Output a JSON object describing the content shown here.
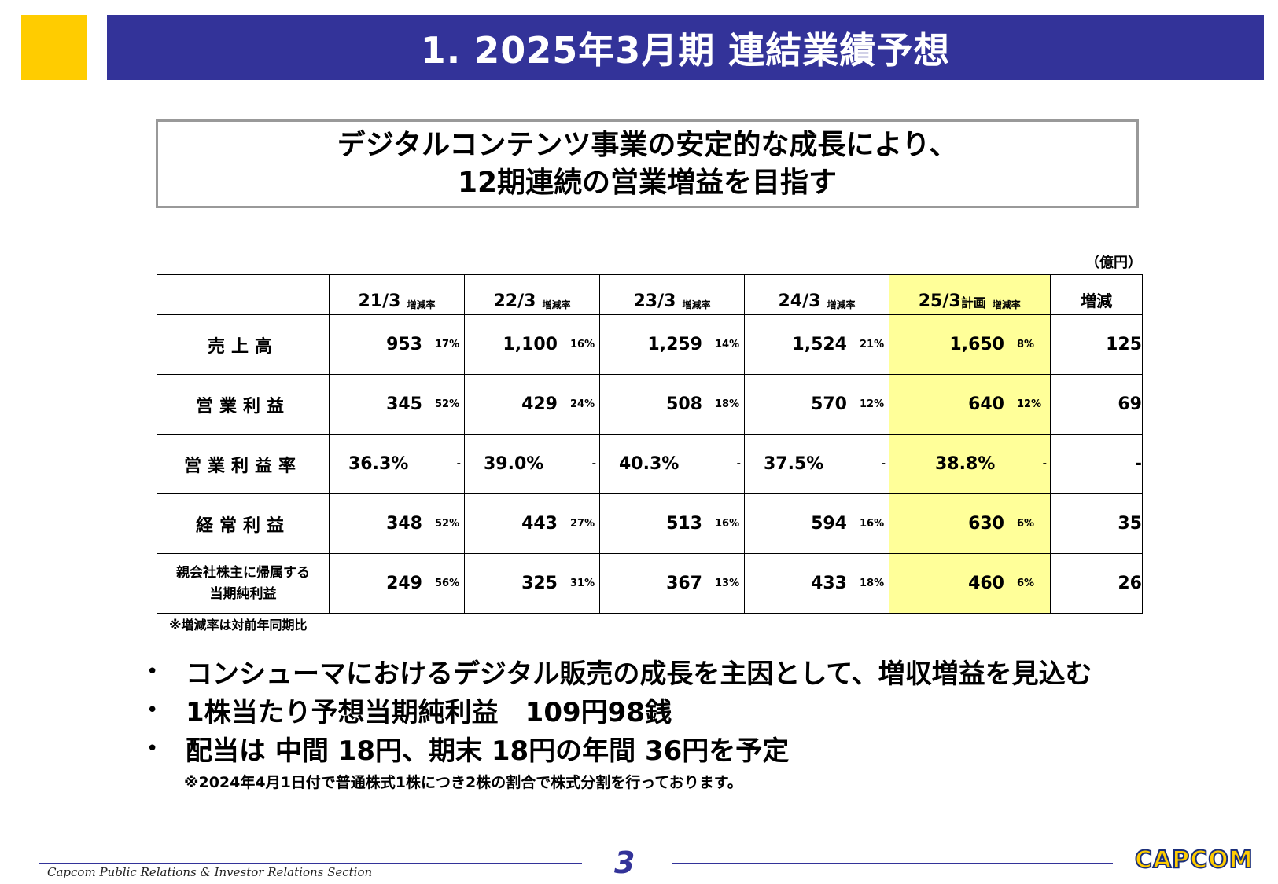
{
  "header": {
    "title": "1.  2025年3月期 連結業績予想"
  },
  "headline": {
    "line1": "デジタルコンテンツ事業の安定的な成長により、",
    "line2": "12期連続の営業増益を目指す"
  },
  "table": {
    "unit": "（億円）",
    "columns": [
      {
        "year": "21/3",
        "suffix": "",
        "rate_label": "増減率"
      },
      {
        "year": "22/3",
        "suffix": "",
        "rate_label": "増減率"
      },
      {
        "year": "23/3",
        "suffix": "",
        "rate_label": "増減率"
      },
      {
        "year": "24/3",
        "suffix": "",
        "rate_label": "増減率"
      },
      {
        "year": "25/3",
        "suffix": "計画",
        "rate_label": "増減率"
      }
    ],
    "diff_header": "増減",
    "rows": [
      {
        "label": "売上高",
        "cells": [
          [
            "953",
            "17%"
          ],
          [
            "1,100",
            "16%"
          ],
          [
            "1,259",
            "14%"
          ],
          [
            "1,524",
            "21%"
          ],
          [
            "1,650",
            "8%"
          ]
        ],
        "diff": "125"
      },
      {
        "label": "営業利益",
        "cells": [
          [
            "345",
            "52%"
          ],
          [
            "429",
            "24%"
          ],
          [
            "508",
            "18%"
          ],
          [
            "570",
            "12%"
          ],
          [
            "640",
            "12%"
          ]
        ],
        "diff": "69"
      },
      {
        "label": "営業利益率",
        "cells": [
          [
            "36.3%",
            "-"
          ],
          [
            "39.0%",
            "-"
          ],
          [
            "40.3%",
            "-"
          ],
          [
            "37.5%",
            "-"
          ],
          [
            "38.8%",
            "-"
          ]
        ],
        "diff": "-"
      },
      {
        "label": "経常利益",
        "cells": [
          [
            "348",
            "52%"
          ],
          [
            "443",
            "27%"
          ],
          [
            "513",
            "16%"
          ],
          [
            "594",
            "16%"
          ],
          [
            "630",
            "6%"
          ]
        ],
        "diff": "35"
      },
      {
        "label_line1": "親会社株主に帰属する",
        "label_line2": "当期純利益",
        "cells": [
          [
            "249",
            "56%"
          ],
          [
            "325",
            "31%"
          ],
          [
            "367",
            "13%"
          ],
          [
            "433",
            "18%"
          ],
          [
            "460",
            "6%"
          ]
        ],
        "diff": "26"
      }
    ],
    "note": "※増減率は対前年同期比"
  },
  "bullets": [
    "コンシューマにおけるデジタル販売の成長を主因として、増収増益を見込む",
    "1株当たり予想当期純利益　109円98銭",
    "配当は 中間 18円、期末 18円の年間 36円を予定"
  ],
  "bullet_mark": "•",
  "sub_note": "※2024年4月1日付で普通株式1株につき2株の割合で株式分割を行っております。",
  "footer": {
    "section": "Capcom Public Relations & Investor Relations Section",
    "page_number": "3",
    "logo": "CAPCOM"
  },
  "colors": {
    "title_bar": "#333399",
    "accent_square": "#FFCC00",
    "plan_highlight": "#FFFF99"
  }
}
